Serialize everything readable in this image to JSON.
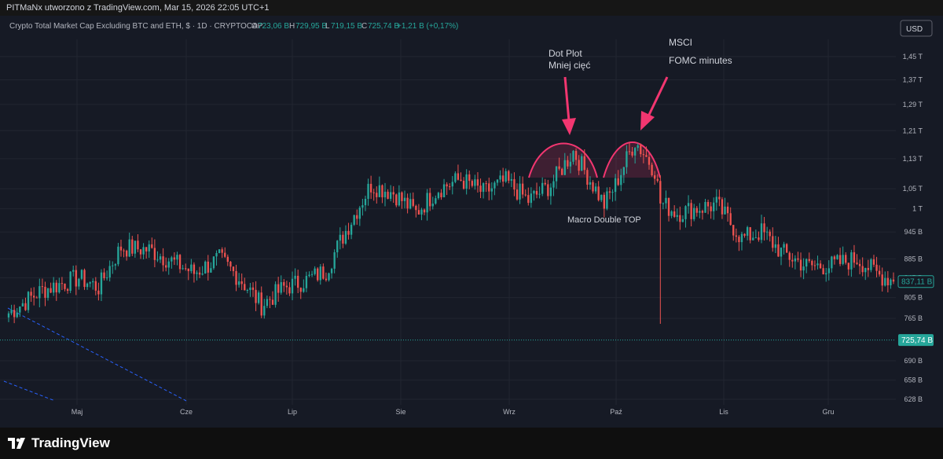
{
  "watermark": "PITMaNx utworzono z TradingView.com, Mar 15, 2026 22:05 UTC+1",
  "legend": {
    "title": "Crypto Total Market Cap Excluding BTC and ETH, $ · 1D · CRYPTOCAP",
    "open_label": "O",
    "open": "723,06 B",
    "high_label": "H",
    "high": "729,95 B",
    "low_label": "L",
    "low": "719,15 B",
    "close_label": "C",
    "close": "725,74 B",
    "change": "+1,21 B (+0,17%)"
  },
  "currency_button": "USD",
  "annotations": {
    "dot_plot_line1": "Dot Plot",
    "dot_plot_line2": "Mniej cięć",
    "msci": "MSCI",
    "fomc": "FOMC minutes",
    "double_top": "Macro Double TOP"
  },
  "price_tags": {
    "current": "837,11 B",
    "last_close": "725,74 B"
  },
  "footer_brand": "TradingView",
  "colors": {
    "up": "#26a69a",
    "down": "#ef5350",
    "annotation": "#f23670",
    "trend": "#2962ff",
    "background": "#161a25"
  },
  "chart_data": {
    "type": "candlestick",
    "title": "Crypto Total Market Cap Excluding BTC and ETH, $ · 1D · CRYPTOCAP",
    "y_scale": "log",
    "y_ticks": [
      {
        "label": "1,45 T",
        "value": 1450
      },
      {
        "label": "1,37 T",
        "value": 1370
      },
      {
        "label": "1,29 T",
        "value": 1290
      },
      {
        "label": "1,21 T",
        "value": 1210
      },
      {
        "label": "1,13 T",
        "value": 1130
      },
      {
        "label": "1,05 T",
        "value": 1050
      },
      {
        "label": "1 T",
        "value": 1000
      },
      {
        "label": "945 B",
        "value": 945
      },
      {
        "label": "885 B",
        "value": 885
      },
      {
        "label": "845 B",
        "value": 845
      },
      {
        "label": "805 B",
        "value": 805
      },
      {
        "label": "765 B",
        "value": 765
      },
      {
        "label": "690 B",
        "value": 690
      },
      {
        "label": "658 B",
        "value": 658
      },
      {
        "label": "628 B",
        "value": 628
      }
    ],
    "x_ticks": [
      "Maj",
      "Cze",
      "Lip",
      "Sie",
      "Wrz",
      "Paź",
      "Lis",
      "Gru"
    ],
    "price_anchors": [
      [
        0,
        775
      ],
      [
        12,
        820
      ],
      [
        25,
        845
      ],
      [
        32,
        825
      ],
      [
        40,
        910
      ],
      [
        50,
        905
      ],
      [
        58,
        880
      ],
      [
        66,
        855
      ],
      [
        75,
        885
      ],
      [
        82,
        845
      ],
      [
        90,
        790
      ],
      [
        98,
        825
      ],
      [
        106,
        840
      ],
      [
        113,
        860
      ],
      [
        121,
        960
      ],
      [
        129,
        1060
      ],
      [
        137,
        1040
      ],
      [
        145,
        990
      ],
      [
        153,
        1050
      ],
      [
        161,
        1075
      ],
      [
        169,
        1040
      ],
      [
        177,
        1070
      ],
      [
        185,
        1020
      ],
      [
        193,
        1060
      ],
      [
        201,
        1150
      ],
      [
        208,
        1060
      ],
      [
        212,
        1010
      ],
      [
        216,
        1060
      ],
      [
        223,
        1180
      ],
      [
        230,
        1100
      ],
      [
        232,
        1015
      ],
      [
        238,
        990
      ],
      [
        244,
        1000
      ],
      [
        252,
        1010
      ],
      [
        261,
        930
      ],
      [
        268,
        945
      ],
      [
        275,
        900
      ],
      [
        284,
        870
      ],
      [
        292,
        870
      ],
      [
        302,
        885
      ],
      [
        310,
        850
      ],
      [
        315,
        840
      ]
    ],
    "last_price": 837.11,
    "last_close_line": 725.74,
    "wick_spike": {
      "day": 232,
      "low": 755
    }
  }
}
